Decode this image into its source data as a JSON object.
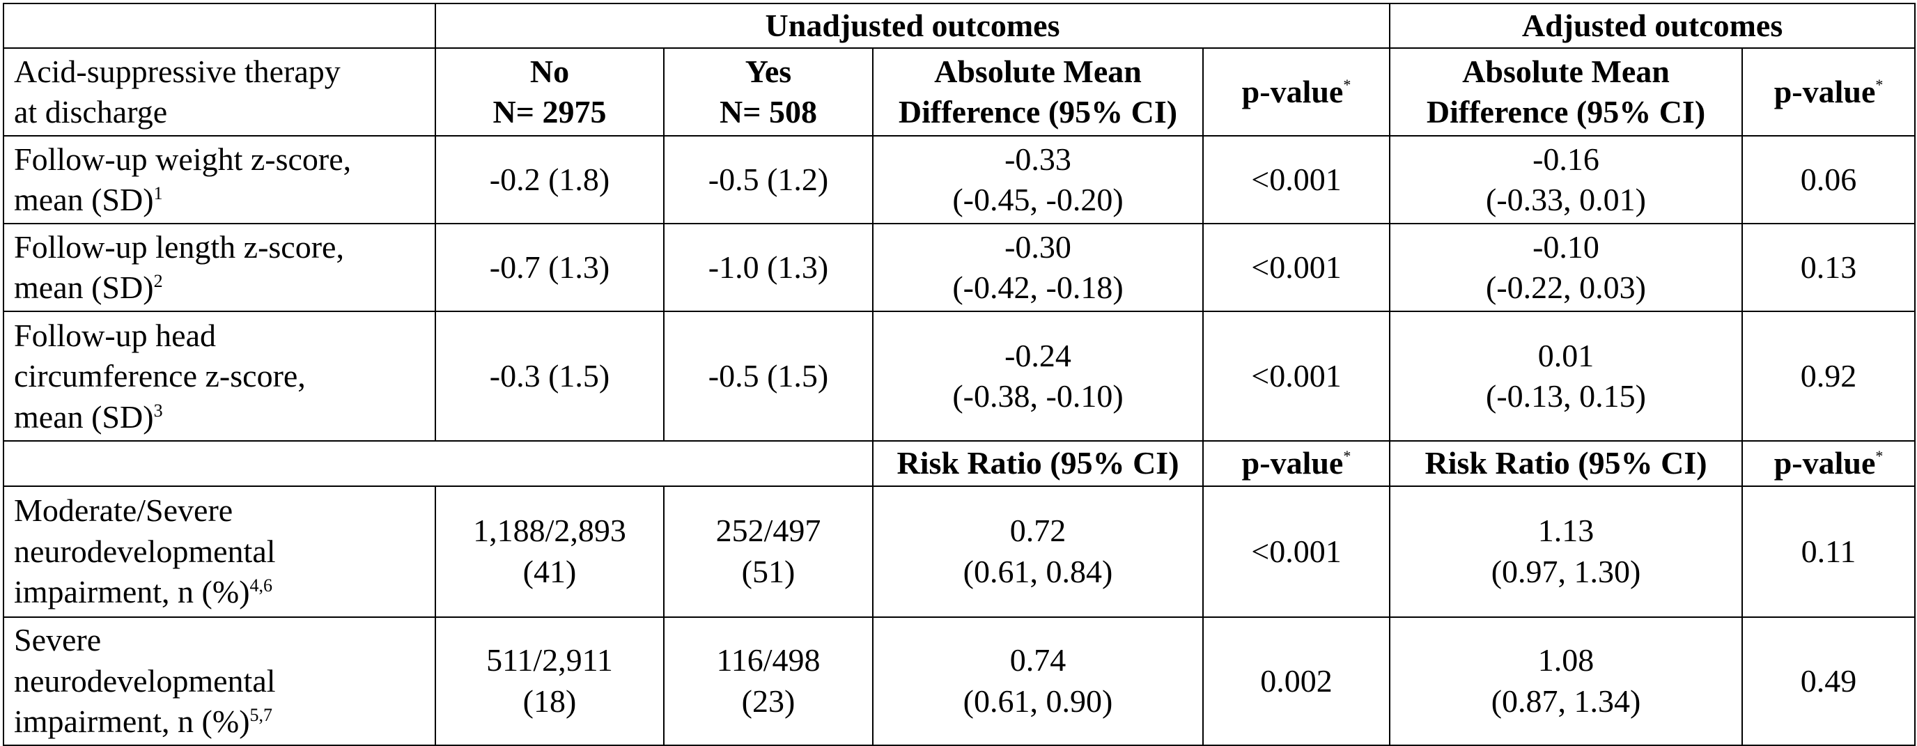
{
  "groups": {
    "unadjusted": "Unadjusted outcomes",
    "adjusted": "Adjusted outcomes"
  },
  "header": {
    "therapy_line1": "Acid-suppressive therapy",
    "therapy_line2": "at discharge",
    "no_label": "No",
    "no_n": "N= 2975",
    "yes_label": "Yes",
    "yes_n": "N= 508",
    "amd_line1": "Absolute Mean",
    "amd_line2": "Difference (95% CI)",
    "pvalue": "p-value",
    "asterisk": "*",
    "risk_ratio": "Risk Ratio (95% CI)"
  },
  "rows": [
    {
      "label": [
        "Follow-up weight z-score,",
        "mean (SD)"
      ],
      "sup": "1",
      "no": [
        "-0.2 (1.8)"
      ],
      "yes": [
        "-0.5 (1.2)"
      ],
      "unadj": [
        "-0.33",
        "(-0.45, -0.20)"
      ],
      "unadj_p": "<0.001",
      "adj": [
        "-0.16",
        "(-0.33, 0.01)"
      ],
      "adj_p": "0.06"
    },
    {
      "label": [
        "Follow-up length z-score,",
        "mean (SD)"
      ],
      "sup": "2",
      "no": [
        "-0.7 (1.3)"
      ],
      "yes": [
        "-1.0 (1.3)"
      ],
      "unadj": [
        "-0.30",
        "(-0.42, -0.18)"
      ],
      "unadj_p": "<0.001",
      "adj": [
        "-0.10",
        "(-0.22, 0.03)"
      ],
      "adj_p": "0.13"
    },
    {
      "label": [
        "Follow-up head",
        "circumference z-score,",
        "mean (SD)"
      ],
      "sup": "3",
      "no": [
        "-0.3 (1.5)"
      ],
      "yes": [
        "-0.5 (1.5)"
      ],
      "unadj": [
        "-0.24",
        "(-0.38, -0.10)"
      ],
      "unadj_p": "<0.001",
      "adj": [
        "0.01",
        "(-0.13, 0.15)"
      ],
      "adj_p": "0.92"
    },
    {
      "label": [
        "Moderate/Severe",
        "neurodevelopmental",
        "impairment, n (%)"
      ],
      "sup": "4,6",
      "no": [
        "1,188/2,893",
        "(41)"
      ],
      "yes": [
        "252/497",
        "(51)"
      ],
      "unadj": [
        "0.72",
        "(0.61, 0.84)"
      ],
      "unadj_p": "<0.001",
      "adj": [
        "1.13",
        "(0.97, 1.30)"
      ],
      "adj_p": "0.11"
    },
    {
      "label": [
        "Severe",
        "neurodevelopmental",
        "impairment, n (%)"
      ],
      "sup": "5,7",
      "no": [
        "511/2,911",
        "(18)"
      ],
      "yes": [
        "116/498",
        "(23)"
      ],
      "unadj": [
        "0.74",
        "(0.61, 0.90)"
      ],
      "unadj_p": "0.002",
      "adj": [
        "1.08",
        "(0.87, 1.34)"
      ],
      "adj_p": "0.49"
    }
  ]
}
